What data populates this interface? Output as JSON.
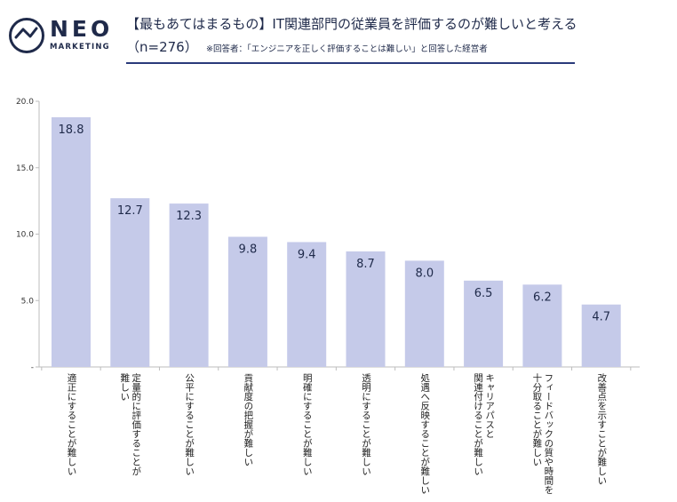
{
  "brand": {
    "logo_name": "NEO",
    "logo_sub": "MARKETING"
  },
  "header": {
    "title": "【最もあてはまるもの】IT関連部門の従業員を評価するのが難しいと考える",
    "sample": "（n=276）",
    "note": "※回答者：「エンジニアを正しく評価することは難しい」と回答した経営者"
  },
  "colors": {
    "bar": "#c5cae9",
    "accent": "#2a3a7a",
    "text": "#1f2a4a"
  },
  "chart_data": {
    "type": "bar",
    "title": "【最もあてはまるもの】IT関連部門の従業員を評価するのが難しいと考える",
    "categories": [
      "適正にすることが難しい",
      "定量的に評価することが難しい",
      "公平にすることが難しい",
      "貢献度の把握が難しい",
      "明確にすることが難しい",
      "透明にすることが難しい",
      "処遇へ反映することが難しい",
      "キャリアパスと関連付けることが難しい",
      "フィードバックの質や時間を十分取ることが難しい",
      "改善点を示すことが難しい"
    ],
    "category_lines": [
      [
        "適正にすることが難しい"
      ],
      [
        "定量的に評価することが",
        "難しい"
      ],
      [
        "公平にすることが難しい"
      ],
      [
        "貢献度の把握が難しい"
      ],
      [
        "明確にすることが難しい"
      ],
      [
        "透明にすることが難しい"
      ],
      [
        "処遇へ反映することが難しい"
      ],
      [
        "キャリアパスと",
        "関連付けることが難しい"
      ],
      [
        "フィードバックの質や時間を",
        "十分取ることが難しい"
      ],
      [
        "改善点を示すことが難しい"
      ]
    ],
    "values": [
      18.8,
      12.7,
      12.3,
      9.8,
      9.4,
      8.7,
      8.0,
      6.5,
      6.2,
      4.7
    ],
    "value_labels": [
      "18.8",
      "12.7",
      "12.3",
      "9.8",
      "9.4",
      "8.7",
      "8.0",
      "6.5",
      "6.2",
      "4.7"
    ],
    "yticks": [
      "-",
      "5.0",
      "10.0",
      "15.0",
      "20.0"
    ],
    "ytick_values": [
      0,
      5,
      10,
      15,
      20
    ],
    "ylim": [
      0,
      20
    ],
    "xlabel": "",
    "ylabel": "",
    "grid": false,
    "legend": "none"
  }
}
